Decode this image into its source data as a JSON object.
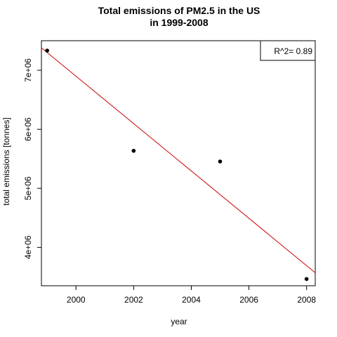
{
  "chart_data": {
    "type": "scatter",
    "title_lines": [
      "Total emissions of PM2.5 in the US",
      "in 1999-2008"
    ],
    "xlabel": "year",
    "ylabel": "total emissions [tonnes]",
    "xlim": [
      1998.8,
      2008.3
    ],
    "ylim": [
      3350000,
      7500000
    ],
    "x_ticks": [
      2000,
      2002,
      2004,
      2006,
      2008
    ],
    "x_tick_labels": [
      "2000",
      "2002",
      "2004",
      "2006",
      "2008"
    ],
    "y_ticks": [
      4000000,
      5000000,
      6000000,
      7000000
    ],
    "y_tick_labels": [
      "4e+06",
      "5e+06",
      "6e+06",
      "7e+06"
    ],
    "points": [
      {
        "x": 1999,
        "y": 7332967
      },
      {
        "x": 2002,
        "y": 5635780
      },
      {
        "x": 2005,
        "y": 5454703
      },
      {
        "x": 2008,
        "y": 3464206
      }
    ],
    "point_color": "#000000",
    "regression": {
      "color": "#cc0000",
      "points": [
        {
          "x": 1998.8,
          "y": 7380000
        },
        {
          "x": 2008.3,
          "y": 3570000
        }
      ]
    },
    "legend": {
      "text": "R^2= 0.89",
      "position": "top-right"
    },
    "grid": false
  }
}
